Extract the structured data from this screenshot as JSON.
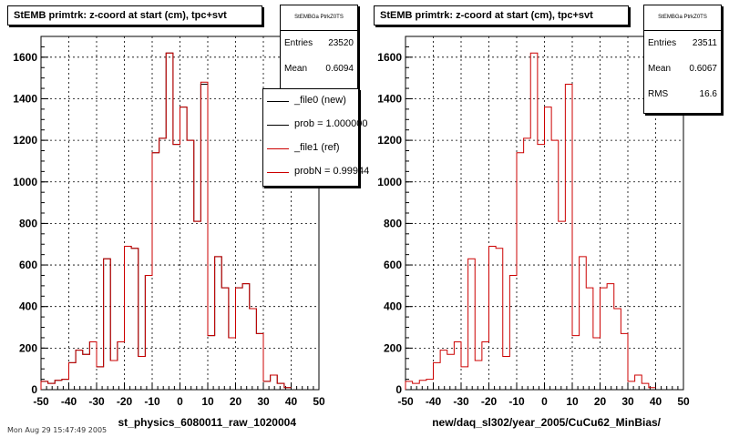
{
  "page": {
    "footer": "Mon Aug 29 15:47:49 2005"
  },
  "chart_data": [
    {
      "type": "line",
      "step": true,
      "title": "StEMB primtrk: z-coord at start (cm), tpc+svt",
      "xlabel": "st_physics_6080011_raw_1020004",
      "ylabel": "",
      "xlim": [
        -50,
        50
      ],
      "ylim": [
        0,
        1700
      ],
      "grid": true,
      "xticks": [
        "-50",
        "-40",
        "-30",
        "-20",
        "-10",
        "0",
        "10",
        "20",
        "30",
        "40",
        "50"
      ],
      "yticks": [
        "0",
        "200",
        "400",
        "600",
        "800",
        "1000",
        "1200",
        "1400",
        "1600"
      ],
      "bin_width": 2.5,
      "series": [
        {
          "name": "_file0 (new)",
          "color": "#000000",
          "values": [
            40,
            30,
            45,
            50,
            130,
            190,
            170,
            230,
            110,
            630,
            140,
            230,
            690,
            680,
            160,
            550,
            1140,
            1210,
            1620,
            1180,
            1360,
            1200,
            810,
            1470,
            260,
            640,
            490,
            250,
            490,
            510,
            390,
            270,
            40,
            70,
            30,
            10
          ]
        },
        {
          "name": "_file1 (ref)",
          "color": "#cc0000",
          "values": [
            40,
            30,
            45,
            50,
            130,
            190,
            170,
            230,
            110,
            630,
            140,
            230,
            690,
            680,
            160,
            550,
            1140,
            1210,
            1620,
            1180,
            1360,
            1200,
            810,
            1480,
            260,
            640,
            490,
            250,
            490,
            510,
            390,
            270,
            40,
            70,
            30,
            10
          ]
        }
      ],
      "stats": {
        "name": "StEMBGa PtrkZ0TS",
        "rows": [
          {
            "label": "Entries",
            "value": "23520"
          },
          {
            "label": "Mean",
            "value": "0.6094"
          }
        ]
      },
      "legend": {
        "placement": "top-right",
        "items": [
          {
            "text": "_file0 (new)",
            "color": "#000000"
          },
          {
            "text": "prob = 1.000000",
            "color": "#000000"
          },
          {
            "text": "_file1 (ref)",
            "color": "#cc0000"
          },
          {
            "text": "probN = 0.99944",
            "color": "#cc0000"
          }
        ]
      }
    },
    {
      "type": "line",
      "step": true,
      "title": "StEMB primtrk: z-coord at start (cm), tpc+svt",
      "xlabel": "new/daq_sl302/year_2005/CuCu62_MinBias/",
      "ylabel": "",
      "xlim": [
        -50,
        50
      ],
      "ylim": [
        0,
        1700
      ],
      "grid": true,
      "xticks": [
        "-50",
        "-40",
        "-30",
        "-20",
        "-10",
        "0",
        "10",
        "20",
        "30",
        "40",
        "50"
      ],
      "yticks": [
        "0",
        "200",
        "400",
        "600",
        "800",
        "1000",
        "1200",
        "1400",
        "1600"
      ],
      "bin_width": 2.5,
      "series": [
        {
          "name": "",
          "color": "#cc0000",
          "values": [
            40,
            30,
            45,
            50,
            130,
            190,
            170,
            230,
            110,
            630,
            140,
            230,
            690,
            680,
            160,
            550,
            1140,
            1210,
            1620,
            1180,
            1360,
            1200,
            810,
            1470,
            260,
            640,
            490,
            250,
            490,
            510,
            390,
            270,
            40,
            70,
            30,
            10
          ]
        }
      ],
      "stats": {
        "name": "StEMBGa PtrkZ0TS",
        "rows": [
          {
            "label": "Entries",
            "value": "23511"
          },
          {
            "label": "Mean",
            "value": "0.6067"
          },
          {
            "label": "RMS",
            "value": "16.6"
          }
        ]
      }
    }
  ]
}
